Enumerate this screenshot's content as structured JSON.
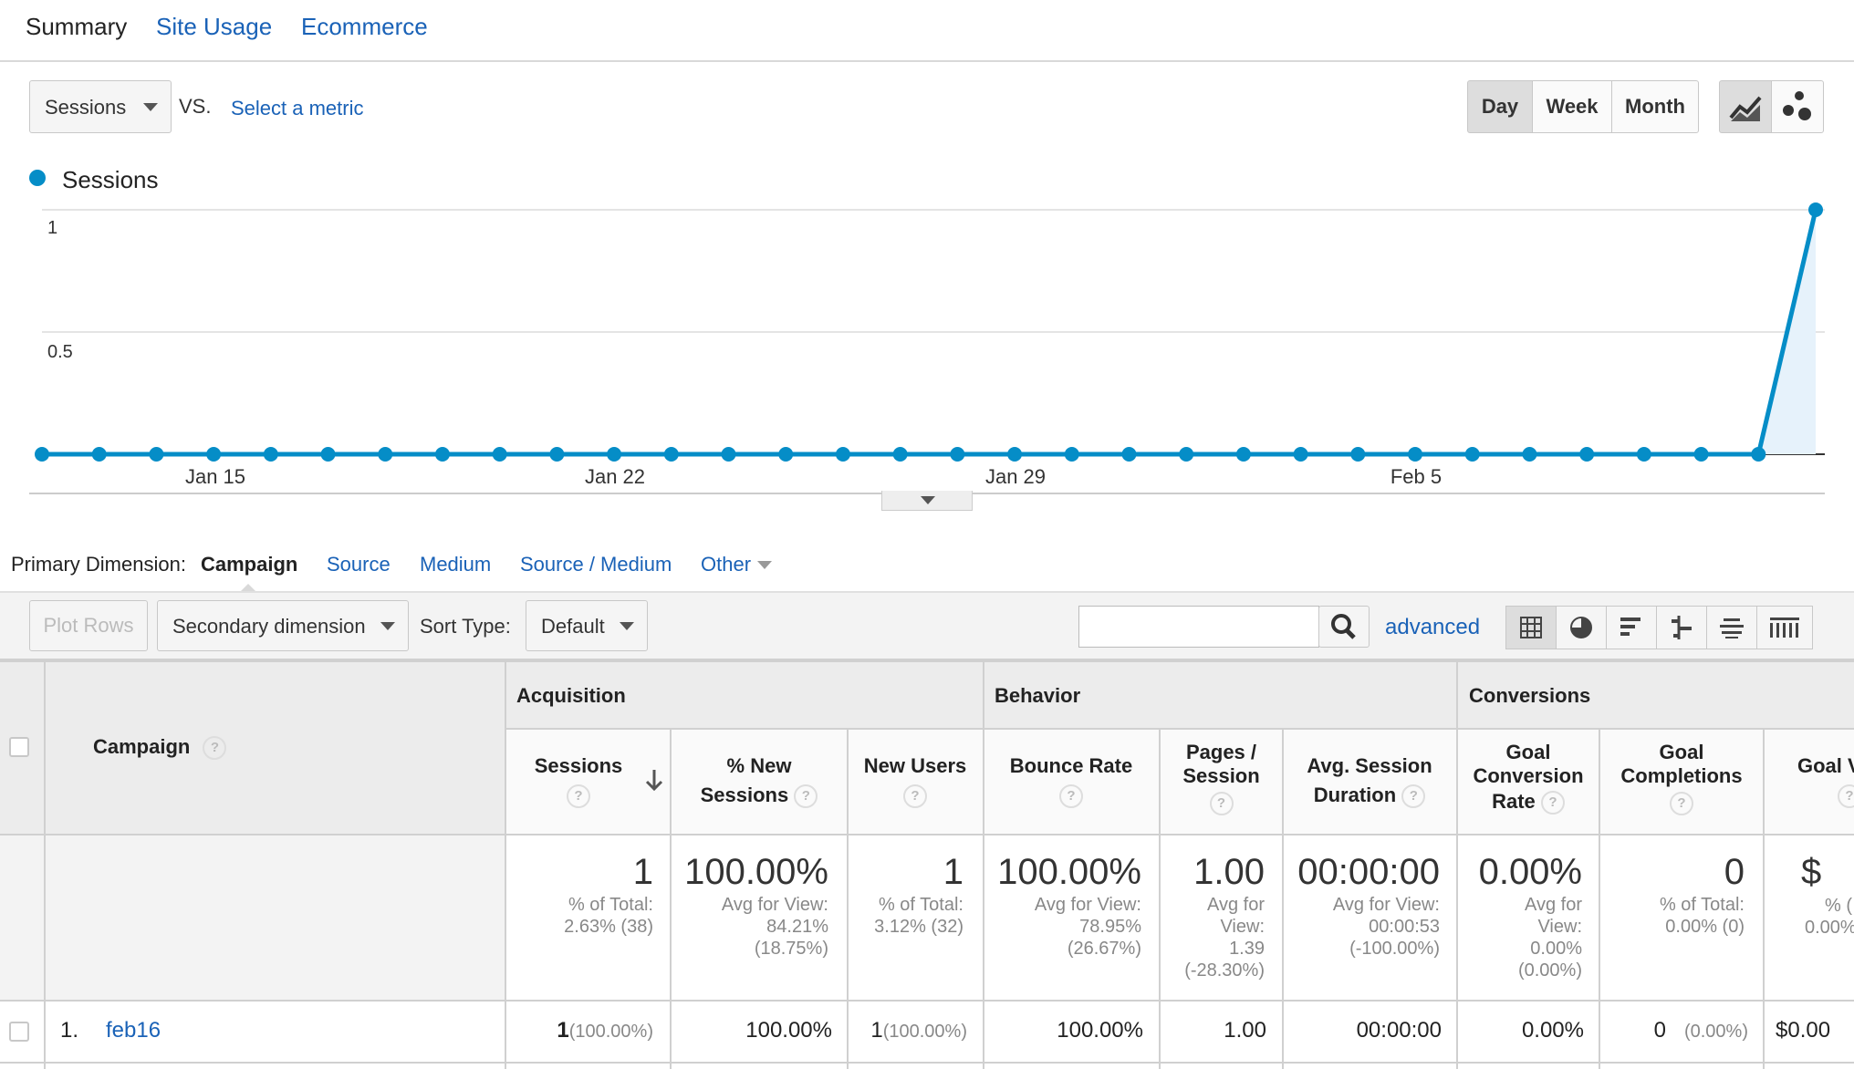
{
  "tabs": [
    {
      "label": "Summary"
    },
    {
      "label": "Site Usage"
    },
    {
      "label": "Ecommerce"
    }
  ],
  "metric": {
    "selected": "Sessions",
    "vs": "VS.",
    "select_metric": "Select a metric"
  },
  "granularity": [
    "Day",
    "Week",
    "Month"
  ],
  "chart_data": {
    "type": "line",
    "series": [
      {
        "name": "Sessions",
        "color": "#058dc7",
        "values": [
          0,
          0,
          0,
          0,
          0,
          0,
          0,
          0,
          0,
          0,
          0,
          0,
          0,
          0,
          0,
          0,
          0,
          0,
          0,
          0,
          0,
          0,
          0,
          0,
          0,
          0,
          0,
          0,
          0,
          0,
          0,
          1
        ]
      }
    ],
    "x_tick_labels": [
      "Jan 15",
      "Jan 22",
      "Jan 29",
      "Feb 5"
    ],
    "y_tick_labels": [
      "1",
      "0.5"
    ],
    "ylim": [
      0,
      1
    ],
    "grid": true
  },
  "dimension": {
    "label": "Primary Dimension:",
    "active": "Campaign",
    "options": [
      "Source",
      "Medium",
      "Source / Medium",
      "Other"
    ]
  },
  "toolbar": {
    "plot_rows": "Plot Rows",
    "secondary": "Secondary dimension",
    "sort_type_label": "Sort Type:",
    "sort_type_value": "Default",
    "search_value": "",
    "advanced": "advanced"
  },
  "table": {
    "groups": {
      "acquisition": "Acquisition",
      "behavior": "Behavior",
      "conversions": "Conversions"
    },
    "headers": {
      "campaign": "Campaign",
      "sessions": "Sessions",
      "pct_new_1": "% New",
      "pct_new_2": "Sessions",
      "new_users": "New Users",
      "bounce": "Bounce Rate",
      "pages_1": "Pages /",
      "pages_2": "Session",
      "avg_1": "Avg. Session",
      "avg_2": "Duration",
      "gcr_1": "Goal",
      "gcr_2": "Conversion",
      "gcr_3": "Rate",
      "gc_1": "Goal",
      "gc_2": "Completions",
      "gv": "Goal V"
    },
    "totals": {
      "sessions": "1",
      "sessions_sub1": "% of Total:",
      "sessions_sub2": "2.63% (38)",
      "pct_new": "100.00%",
      "pct_new_sub1": "Avg for View:",
      "pct_new_sub2": "84.21%",
      "pct_new_sub3": "(18.75%)",
      "new_users": "1",
      "new_users_sub1": "% of Total:",
      "new_users_sub2": "3.12% (32)",
      "bounce": "100.00%",
      "bounce_sub1": "Avg for View:",
      "bounce_sub2": "78.95%",
      "bounce_sub3": "(26.67%)",
      "pages": "1.00",
      "pages_sub1": "Avg for",
      "pages_sub2": "View:",
      "pages_sub3": "1.39",
      "pages_sub4": "(-28.30%)",
      "avg": "00:00:00",
      "avg_sub1": "Avg for View:",
      "avg_sub2": "00:00:53",
      "avg_sub3": "(-100.00%)",
      "gcr": "0.00%",
      "gcr_sub1": "Avg for",
      "gcr_sub2": "View:",
      "gcr_sub3": "0.00%",
      "gcr_sub4": "(0.00%)",
      "gc": "0",
      "gc_sub1": "% of Total:",
      "gc_sub2": "0.00% (0)",
      "gv": "$",
      "gv_sub1": "% (",
      "gv_sub2": "0.00%"
    },
    "rows": [
      {
        "index": "1.",
        "campaign": "feb16",
        "sessions": "1",
        "sessions_pct": "(100.00%)",
        "pct_new": "100.00%",
        "new_users": "1",
        "new_users_pct": "(100.00%)",
        "bounce": "100.00%",
        "pages": "1.00",
        "avg": "00:00:00",
        "gcr": "0.00%",
        "gc": "0",
        "gc_pct": "(0.00%)",
        "gv": "$0.00"
      }
    ]
  }
}
